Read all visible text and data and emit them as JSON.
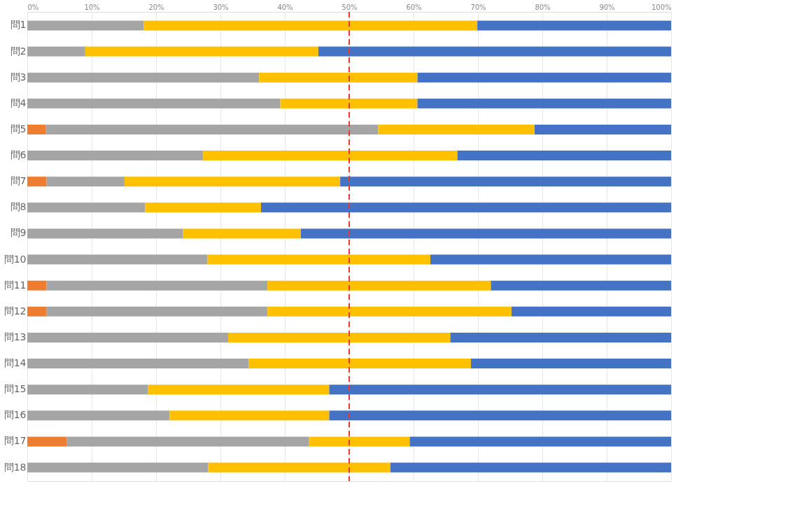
{
  "chart_data": {
    "type": "bar",
    "orientation": "horizontal",
    "stacked": true,
    "categories": [
      "問1",
      "問2",
      "問3",
      "問4",
      "問5",
      "問6",
      "問7",
      "問8",
      "問9",
      "問10",
      "問11",
      "問12",
      "問13",
      "問14",
      "問15",
      "問16",
      "問17",
      "問18"
    ],
    "series": [
      {
        "color": "#ed7d31",
        "values": [
          0,
          0,
          0,
          0,
          2.9,
          0,
          3.0,
          0,
          0,
          0,
          3.0,
          3.0,
          0,
          0,
          0,
          0,
          6.1,
          0
        ]
      },
      {
        "color": "#a5a5a5",
        "values": [
          18.1,
          9.0,
          36.0,
          39.3,
          51.6,
          27.3,
          12.1,
          18.3,
          24.2,
          28.0,
          34.3,
          34.3,
          31.2,
          34.4,
          18.7,
          22.1,
          37.6,
          28.1
        ]
      },
      {
        "color": "#ffc000",
        "values": [
          51.8,
          36.2,
          24.6,
          21.3,
          24.3,
          39.5,
          33.5,
          18.0,
          18.3,
          34.6,
          34.7,
          37.9,
          34.5,
          34.5,
          28.2,
          24.8,
          15.7,
          28.3
        ]
      },
      {
        "color": "#4472c4",
        "values": [
          30.1,
          54.8,
          39.4,
          39.4,
          21.2,
          33.2,
          51.4,
          63.7,
          57.5,
          37.4,
          28.0,
          24.8,
          34.3,
          31.1,
          53.1,
          53.1,
          40.6,
          43.6
        ]
      }
    ],
    "xlim": [
      0,
      100
    ],
    "xticks": [
      {
        "value": 0,
        "label": "0%"
      },
      {
        "value": 10,
        "label": "10%"
      },
      {
        "value": 20,
        "label": "20%"
      },
      {
        "value": 30,
        "label": "30%"
      },
      {
        "value": 40,
        "label": "40%"
      },
      {
        "value": 50,
        "label": "50%"
      },
      {
        "value": 60,
        "label": "60%"
      },
      {
        "value": 70,
        "label": "70%"
      },
      {
        "value": 80,
        "label": "80%"
      },
      {
        "value": 90,
        "label": "90%"
      },
      {
        "value": 100,
        "label": "100%"
      }
    ],
    "grid": "x",
    "ref_lines": [
      {
        "axis": "x",
        "value": 50,
        "color": "#e03c31",
        "line_style": "dashed"
      }
    ]
  }
}
